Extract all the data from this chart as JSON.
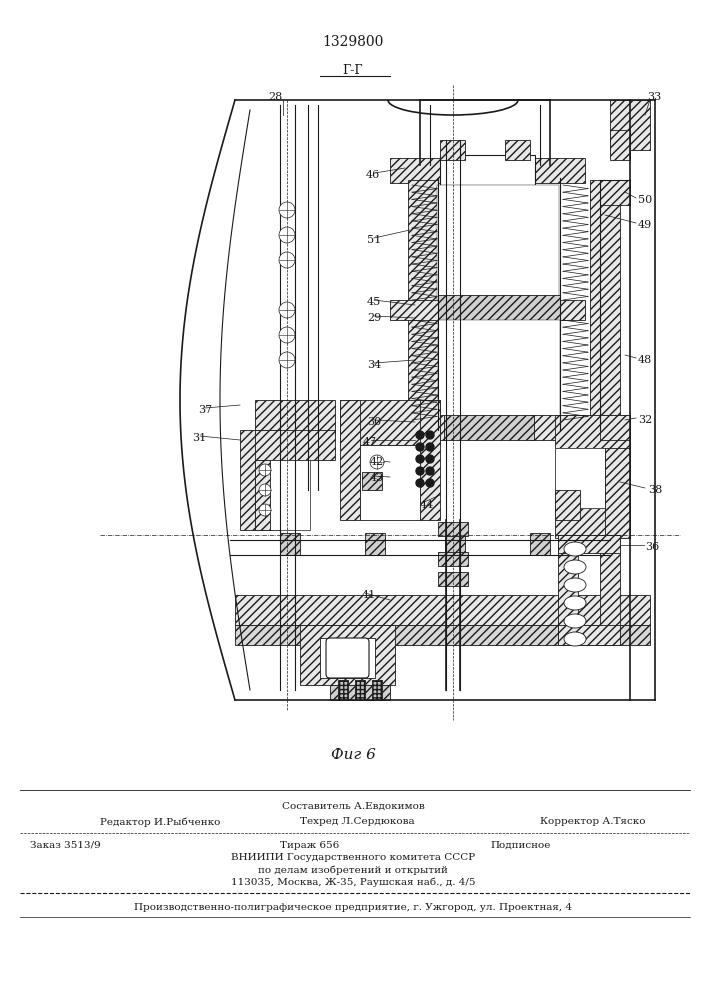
{
  "patent_number": "1329800",
  "section_label": "Г-Г",
  "fig_label": "Фиг 6",
  "bg_color": "#f5f5f0",
  "line_color": "#1a1a1a",
  "footer": {
    "editor": "Редактор И.Рыбченко",
    "compiler": "Составитель А.Евдокимов",
    "techred": "Техред Л.Сердюкова",
    "corrector": "Корректор А.Тяско",
    "order": "Заказ 3513/9",
    "circulation": "Тираж 656",
    "subscription": "Подписное",
    "vniigi_line1": "ВНИИПИ Государственного комитета СССР",
    "vniigi_line2": "по делам изобретений и открытий",
    "vniigi_line3": "113035, Москва, Ж-35, Раушская наб., д. 4/5",
    "production": "Производственно-полиграфическое предприятие, г. Ужгород, ул. Проектная, 4"
  }
}
